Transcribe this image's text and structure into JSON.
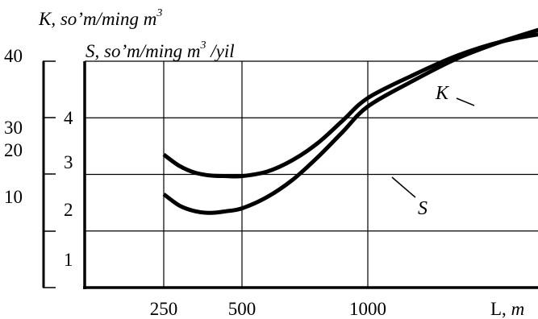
{
  "chart_data": {
    "type": "line",
    "y_axis_outer": {
      "title": "K, so’m/ming m",
      "title_superscript": "3",
      "ticks": [
        "40",
        "30",
        "20",
        "10"
      ]
    },
    "y_axis_inner": {
      "title": "S, so’m/ming m",
      "title_superscript": "3",
      "title_suffix": " /yil",
      "ticks": [
        "4",
        "3",
        "2",
        "1"
      ]
    },
    "x_axis": {
      "unit_label": "L, m",
      "ticks": [
        "250",
        "500",
        "1000"
      ],
      "tick_values": [
        250,
        500,
        1000
      ],
      "xlim": [
        0,
        1400
      ]
    },
    "series": [
      {
        "name": "K",
        "axis": "K",
        "x": [
          250,
          300,
          350,
          400,
          450,
          500,
          600,
          700,
          800,
          900,
          1000,
          1100,
          1200,
          1300,
          1400
        ],
        "y": [
          16.5,
          14.5,
          13.5,
          13.2,
          13.5,
          14.0,
          16.0,
          19.0,
          23.0,
          27.5,
          32.0,
          36.5,
          40.5,
          43.5,
          46.0
        ]
      },
      {
        "name": "S",
        "axis": "S",
        "x": [
          250,
          300,
          350,
          400,
          450,
          500,
          600,
          700,
          800,
          900,
          1000,
          1100,
          1200,
          1300,
          1400
        ],
        "y": [
          2.35,
          2.15,
          2.03,
          1.98,
          1.97,
          1.97,
          2.05,
          2.25,
          2.55,
          2.95,
          3.35,
          3.75,
          4.1,
          4.35,
          4.5
        ]
      }
    ],
    "grid": true
  }
}
